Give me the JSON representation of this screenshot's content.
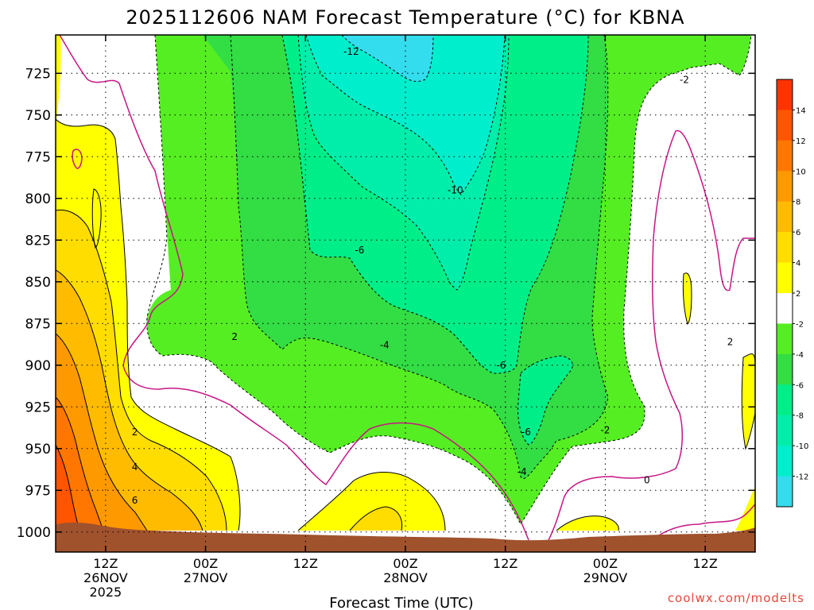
{
  "chart_data": {
    "type": "contour",
    "title": "2025112606 NAM Forecast Temperature (°C) for KBNA",
    "xlabel": "Forecast Time (UTC)",
    "ylabel": "",
    "credit": "coolwx.com/modelts",
    "y_axis": {
      "unit": "hPa",
      "range": [
        1012,
        702
      ],
      "ticks": [
        725,
        750,
        775,
        800,
        825,
        850,
        875,
        900,
        925,
        950,
        975,
        1000
      ]
    },
    "x_axis": {
      "unit": "forecast hour",
      "range": [
        0,
        84
      ],
      "ticks": [
        {
          "hour": 6,
          "line1": "12Z",
          "line2": "26NOV",
          "line3": "2025"
        },
        {
          "hour": 18,
          "line1": "00Z",
          "line2": "27NOV",
          "line3": ""
        },
        {
          "hour": 30,
          "line1": "12Z",
          "line2": "",
          "line3": ""
        },
        {
          "hour": 42,
          "line1": "00Z",
          "line2": "28NOV",
          "line3": ""
        },
        {
          "hour": 54,
          "line1": "12Z",
          "line2": "",
          "line3": ""
        },
        {
          "hour": 66,
          "line1": "00Z",
          "line2": "29NOV",
          "line3": ""
        },
        {
          "hour": 78,
          "line1": "12Z",
          "line2": "",
          "line3": ""
        }
      ]
    },
    "colorbar": {
      "levels": [
        -14,
        -12,
        -10,
        -8,
        -6,
        -4,
        -2,
        2,
        4,
        6,
        8,
        10,
        12,
        14,
        16
      ],
      "tick_labels": [
        "-12",
        "-10",
        "-8",
        "-6",
        "-4",
        "-2",
        "2",
        "4",
        "6",
        "8",
        "10",
        "12",
        "14"
      ],
      "colors": [
        "#33ddee",
        "#00eecc",
        "#00eeaa",
        "#00ee88",
        "#33dd44",
        "#55ee22",
        "#ffffff",
        "#ffff00",
        "#ffdd00",
        "#ffbb00",
        "#ff9900",
        "#ff7700",
        "#ff5500",
        "#ff3300"
      ]
    },
    "contour_labels": [
      {
        "text": "-12",
        "hour": 35.5,
        "p": 712
      },
      {
        "text": "-10",
        "hour": 48,
        "p": 795
      },
      {
        "text": "-6",
        "hour": 36.5,
        "p": 831
      },
      {
        "text": "-4",
        "hour": 39.5,
        "p": 888
      },
      {
        "text": "-6",
        "hour": 53.5,
        "p": 900
      },
      {
        "text": "-6",
        "hour": 56.5,
        "p": 940
      },
      {
        "text": "-4",
        "hour": 56,
        "p": 964
      },
      {
        "text": "-2",
        "hour": 66,
        "p": 939
      },
      {
        "text": "0",
        "hour": 71,
        "p": 969
      },
      {
        "text": "-2",
        "hour": 75.5,
        "p": 729
      },
      {
        "text": "2",
        "hour": 81,
        "p": 886
      },
      {
        "text": "2",
        "hour": 21.5,
        "p": 883
      },
      {
        "text": "2",
        "hour": 9.5,
        "p": 940
      },
      {
        "text": "4",
        "hour": 9.5,
        "p": 961
      },
      {
        "text": "6",
        "hour": 9.5,
        "p": 981
      }
    ],
    "ground_pressure_hPa": 1005
  }
}
